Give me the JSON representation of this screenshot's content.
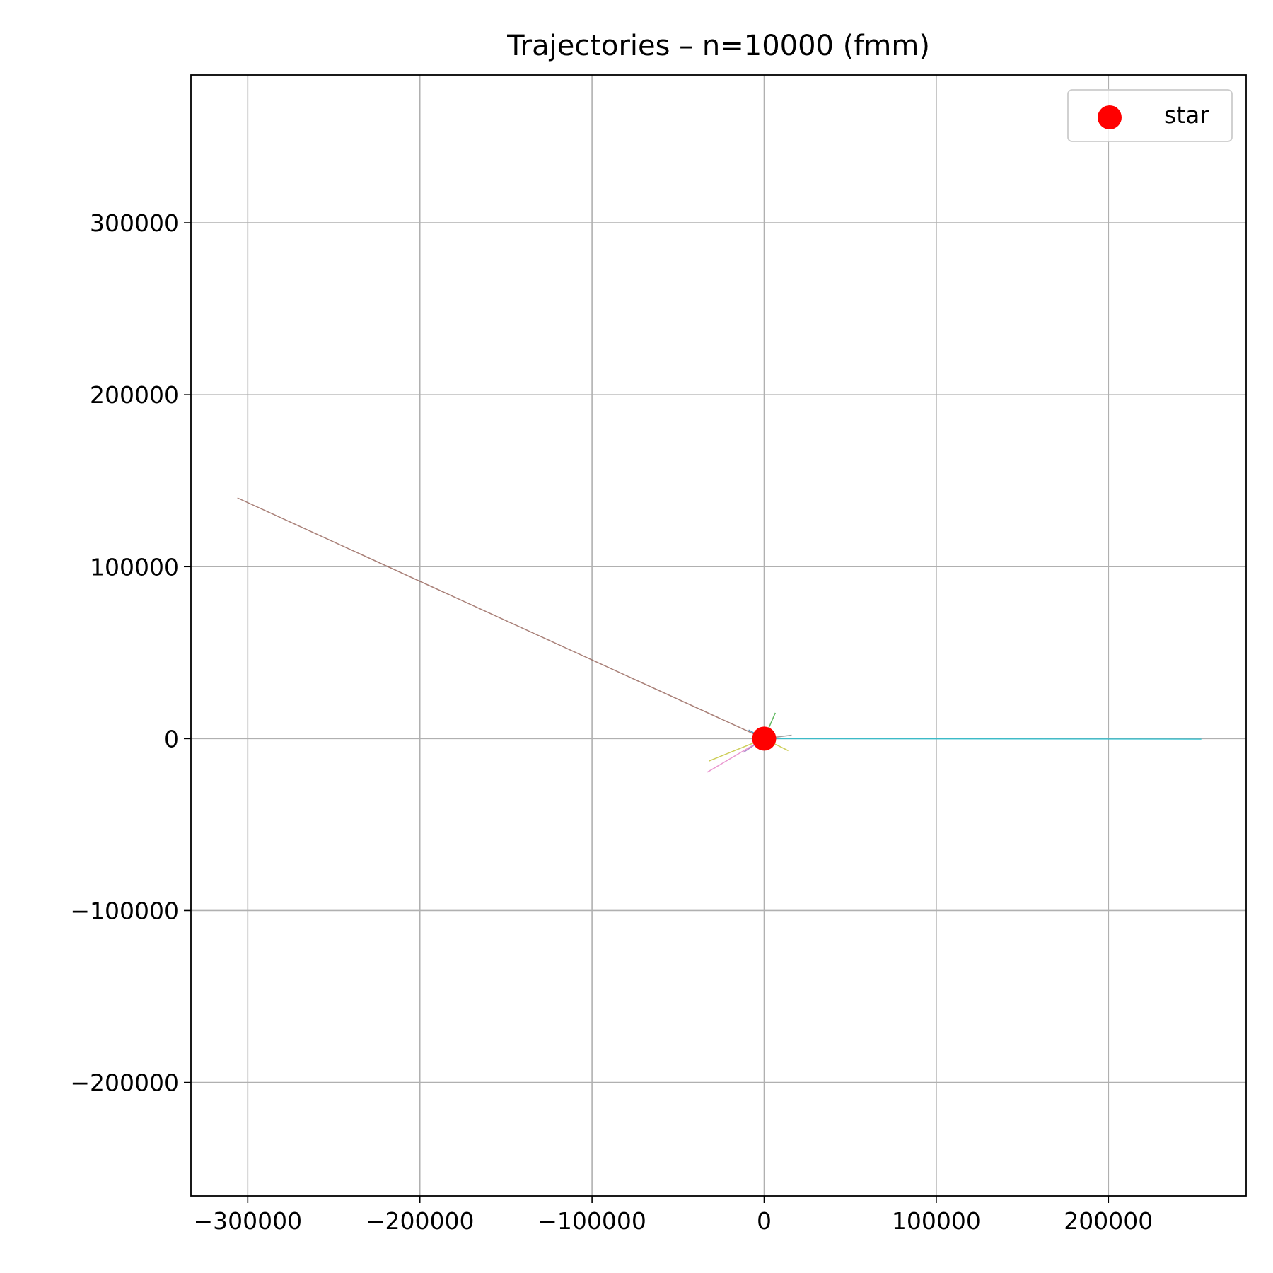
{
  "chart_data": {
    "type": "line",
    "title": "Trajectories – n=10000 (fmm)",
    "xlabel": "",
    "ylabel": "",
    "xlim": [
      -333000,
      280000
    ],
    "ylim": [
      -266000,
      386000
    ],
    "grid": true,
    "x_ticks": [
      {
        "value": -300000,
        "label": "−300000"
      },
      {
        "value": -200000,
        "label": "−200000"
      },
      {
        "value": -100000,
        "label": "−100000"
      },
      {
        "value": 0,
        "label": "0"
      },
      {
        "value": 100000,
        "label": "100000"
      },
      {
        "value": 200000,
        "label": "200000"
      }
    ],
    "y_ticks": [
      {
        "value": 300000,
        "label": "300000"
      },
      {
        "value": 200000,
        "label": "200000"
      },
      {
        "value": 100000,
        "label": "100000"
      },
      {
        "value": 0,
        "label": "0"
      },
      {
        "value": -100000,
        "label": "−100000"
      },
      {
        "value": -200000,
        "label": "−200000"
      }
    ],
    "legend": {
      "placement": "top-right",
      "entries": [
        {
          "label": "star",
          "color": "#ff0000",
          "marker": "circle"
        }
      ]
    },
    "star": {
      "x": 0,
      "y": 0,
      "color": "#ff0000"
    },
    "series": [
      {
        "color": "#1f77b4",
        "x": [
          0,
          -9000
        ],
        "y": [
          0,
          5000
        ]
      },
      {
        "color": "#ff7f0e",
        "x": [
          0,
          -4000
        ],
        "y": [
          0,
          3000
        ]
      },
      {
        "color": "#2ca02c",
        "x": [
          0,
          6500
        ],
        "y": [
          0,
          15000
        ]
      },
      {
        "color": "#d62728",
        "x": [
          0,
          3000
        ],
        "y": [
          0,
          -4000
        ]
      },
      {
        "color": "#9467bd",
        "x": [
          0,
          -12000
        ],
        "y": [
          0,
          -8000
        ]
      },
      {
        "color": "#8c564b",
        "x": [
          0,
          -306000
        ],
        "y": [
          0,
          140000
        ]
      },
      {
        "color": "#e377c2",
        "x": [
          0,
          -33000
        ],
        "y": [
          0,
          -19500
        ]
      },
      {
        "color": "#7f7f7f",
        "x": [
          0,
          16000
        ],
        "y": [
          0,
          2000
        ]
      },
      {
        "color": "#bcbd22",
        "x": [
          0,
          -32000
        ],
        "y": [
          0,
          -13000
        ]
      },
      {
        "color": "#bcbd22",
        "x": [
          0,
          14000
        ],
        "y": [
          0,
          -7000
        ]
      },
      {
        "color": "#17becf",
        "x": [
          0,
          254000
        ],
        "y": [
          0,
          -300
        ]
      }
    ]
  }
}
